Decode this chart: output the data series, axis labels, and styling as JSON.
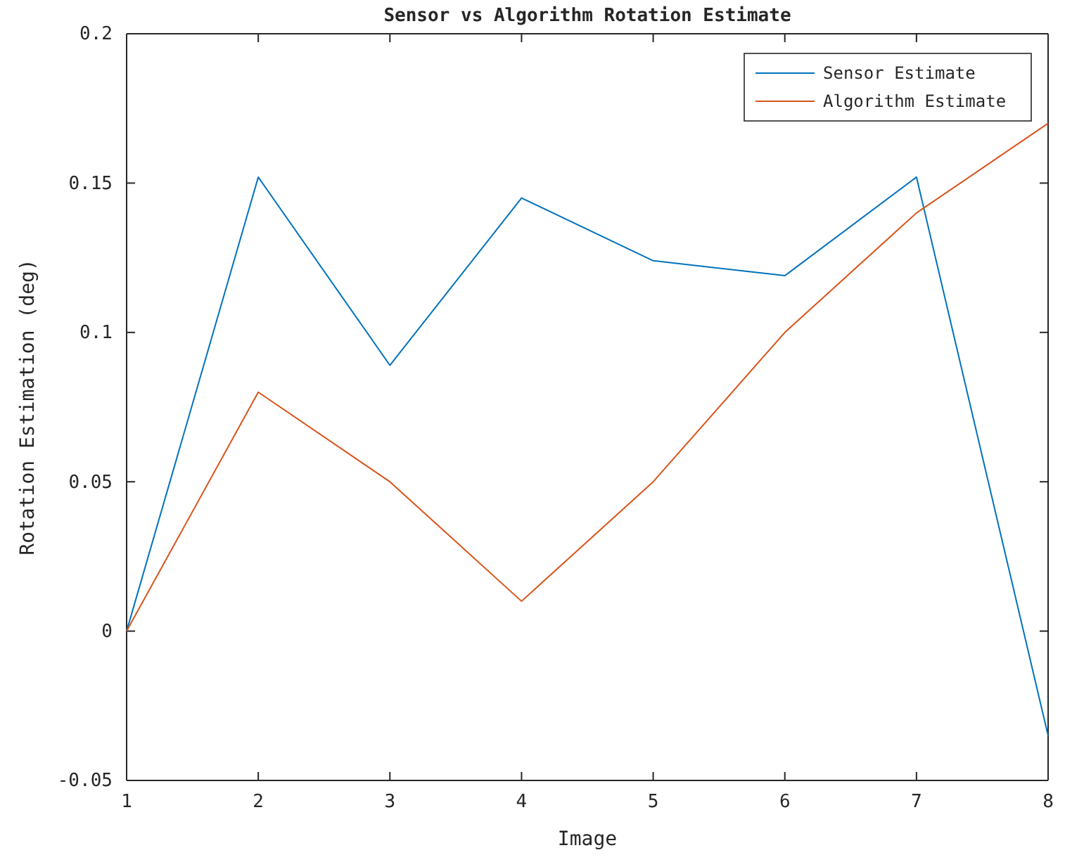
{
  "chart_data": {
    "type": "line",
    "title": "Sensor vs Algorithm Rotation Estimate",
    "xlabel": "Image",
    "ylabel": "Rotation Estimation (deg)",
    "x": [
      1,
      2,
      3,
      4,
      5,
      6,
      7,
      8
    ],
    "series": [
      {
        "name": "Sensor Estimate",
        "color": "#0072bd",
        "values": [
          0,
          0.152,
          0.089,
          0.145,
          0.124,
          0.119,
          0.152,
          -0.035
        ]
      },
      {
        "name": "Algorithm Estimate",
        "color": "#d95319",
        "values": [
          0,
          0.08,
          0.05,
          0.01,
          0.05,
          0.1,
          0.14,
          0.17
        ]
      }
    ],
    "xlim": [
      1,
      8
    ],
    "xticks": [
      1,
      2,
      3,
      4,
      5,
      6,
      7,
      8
    ],
    "ylim": [
      -0.05,
      0.2
    ],
    "yticks": [
      {
        "value": -0.05,
        "label": "-0.05"
      },
      0,
      0.05,
      0.1,
      0.15,
      0.2
    ],
    "grid": false,
    "legend": "top right",
    "marker": "none",
    "line_style": "solid"
  }
}
